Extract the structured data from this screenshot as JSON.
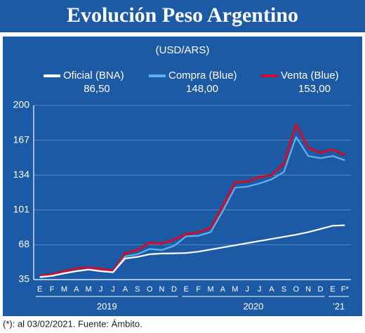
{
  "chart_data": {
    "type": "line",
    "title": "Evolución Peso Argentino",
    "subtitle": "(USD/ARS)",
    "footnote": "(*): al 03/02/2021. Fuente: Ámbito.",
    "categories": [
      "E",
      "F",
      "M",
      "A",
      "M",
      "J",
      "J",
      "A",
      "S",
      "O",
      "N",
      "D",
      "E",
      "F",
      "M",
      "A",
      "M",
      "J",
      "J",
      "A",
      "S",
      "O",
      "N",
      "D",
      "E",
      "F*"
    ],
    "years": [
      "2019",
      "2020",
      "’21"
    ],
    "series": [
      {
        "name": "Venta (Blue)",
        "color": "#c8102e",
        "current": {
          "value": 153,
          "label": "153,00"
        },
        "values": [
          38.5,
          40,
          43,
          45.5,
          46.5,
          45,
          43.5,
          60,
          63,
          70,
          69,
          73,
          78,
          80,
          84,
          105,
          127,
          128,
          132,
          134,
          145,
          182,
          160,
          155,
          158,
          153
        ]
      },
      {
        "name": "Compra (Blue)",
        "color": "#5fb2e8",
        "current": {
          "value": 148,
          "label": "148,00"
        },
        "values": [
          37,
          38.5,
          41,
          43,
          44.5,
          43,
          42,
          57,
          59,
          64,
          63,
          67,
          76,
          76.5,
          80,
          100,
          122,
          123,
          126,
          130,
          137,
          170,
          152,
          150,
          152,
          148
        ]
      },
      {
        "name": "Oficial (BNA)",
        "color": "#ffffff",
        "current": {
          "value": 86.5,
          "label": "86,50"
        },
        "values": [
          37.5,
          38.5,
          41,
          43,
          44.5,
          43,
          42,
          55,
          56.5,
          59,
          59.7,
          59.9,
          60.2,
          61.5,
          63.5,
          65.5,
          67.5,
          69.5,
          71.5,
          73.5,
          75.5,
          77.5,
          80,
          83,
          86,
          86.5
        ]
      }
    ],
    "ylim": [
      35,
      200
    ],
    "yticks": [
      35,
      68,
      101,
      134,
      167,
      200
    ],
    "grid": true
  }
}
